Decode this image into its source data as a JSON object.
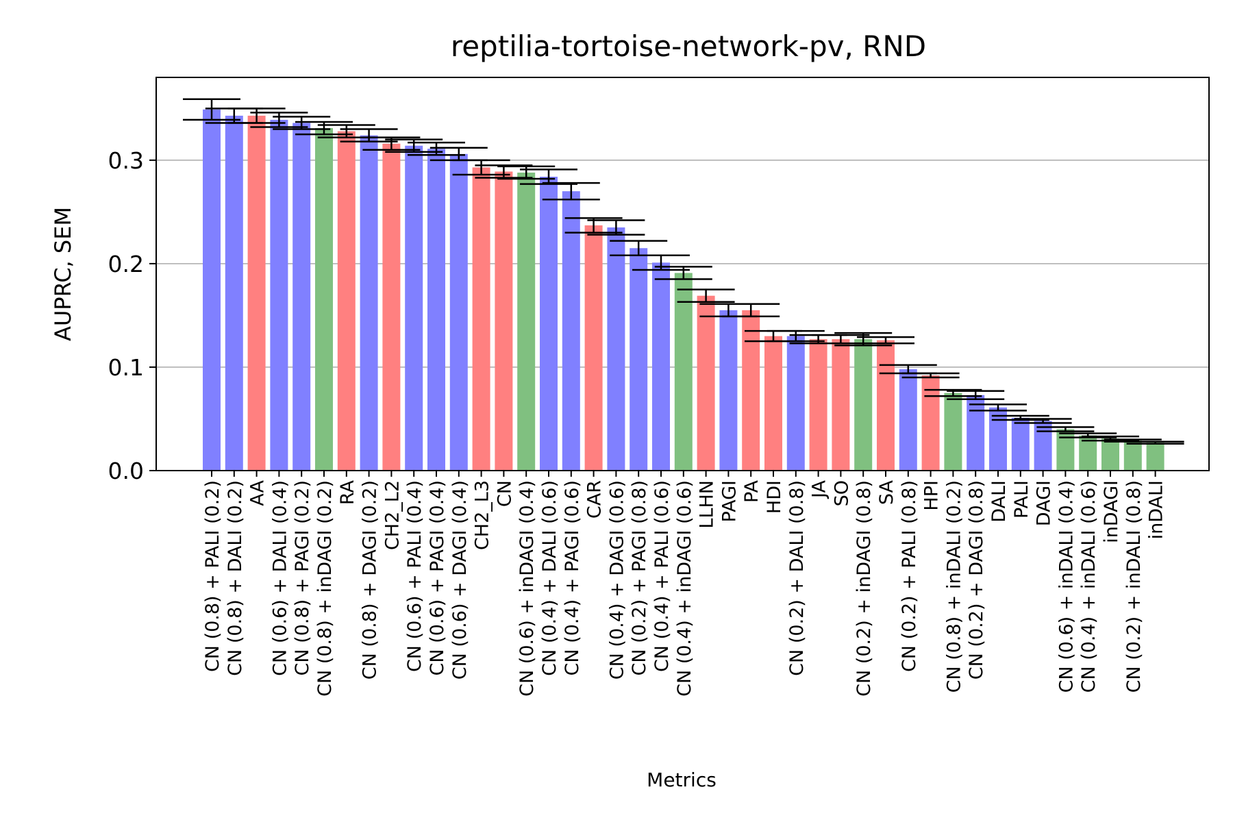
{
  "chart_data": {
    "type": "bar",
    "title": "reptilia-tortoise-network-pv, RND",
    "xlabel": "Metrics",
    "ylabel": "AUPRC, SEM",
    "ylim": [
      0,
      0.38
    ],
    "yticks": [
      0.0,
      0.1,
      0.2,
      0.3
    ],
    "ytick_labels": [
      "0.0",
      "0.1",
      "0.2",
      "0.3"
    ],
    "grid": "y",
    "legend": "none",
    "colors": {
      "blue": "#8080ff",
      "red": "#ff8080",
      "green": "#80c080",
      "grid": "#b0b0b0",
      "error": "#000000"
    },
    "categories": [
      "CN (0.8) + PALI (0.2)",
      "CN (0.8) + DALI (0.2)",
      "AA",
      "CN (0.6) + DALI (0.4)",
      "CN (0.8) + PAGI (0.2)",
      "CN (0.8) + inDAGI (0.2)",
      "RA",
      "CN (0.8) + DAGI (0.2)",
      "CH2_L2",
      "CN (0.6) + PALI (0.4)",
      "CN (0.6) + PAGI (0.4)",
      "CN (0.6) + DAGI (0.4)",
      "CH2_L3",
      "CN",
      "CN (0.6) + inDAGI (0.4)",
      "CN (0.4) + DALI (0.6)",
      "CN (0.4) + PAGI (0.6)",
      "CAR",
      "CN (0.4) + DAGI (0.6)",
      "CN (0.2) + PAGI (0.8)",
      "CN (0.4) + PALI (0.6)",
      "CN (0.4) + inDAGI (0.6)",
      "LLHN",
      "PAGI",
      "PA",
      "HDI",
      "CN (0.2) + DALI (0.8)",
      "JA",
      "SO",
      "CN (0.2) + inDAGI (0.8)",
      "SA",
      "CN (0.2) + PALI (0.8)",
      "HPI",
      "CN (0.8) + inDALI (0.2)",
      "CN (0.2) + DAGI (0.8)",
      "DALI",
      "PALI",
      "DAGI",
      "CN (0.6) + inDALI (0.4)",
      "CN (0.4) + inDALI (0.6)",
      "inDAGI",
      "CN (0.2) + inDALI (0.8)",
      "inDALI"
    ],
    "values": [
      0.349,
      0.343,
      0.343,
      0.339,
      0.336,
      0.331,
      0.328,
      0.324,
      0.316,
      0.314,
      0.311,
      0.306,
      0.293,
      0.289,
      0.288,
      0.284,
      0.27,
      0.237,
      0.235,
      0.215,
      0.201,
      0.191,
      0.169,
      0.155,
      0.155,
      0.13,
      0.13,
      0.127,
      0.127,
      0.127,
      0.126,
      0.098,
      0.092,
      0.075,
      0.073,
      0.061,
      0.051,
      0.048,
      0.04,
      0.034,
      0.031,
      0.029,
      0.027
    ],
    "errors": [
      0.01,
      0.007,
      0.007,
      0.007,
      0.006,
      0.006,
      0.006,
      0.006,
      0.006,
      0.006,
      0.006,
      0.006,
      0.007,
      0.006,
      0.006,
      0.007,
      0.008,
      0.007,
      0.007,
      0.007,
      0.007,
      0.006,
      0.006,
      0.006,
      0.006,
      0.005,
      0.005,
      0.004,
      0.004,
      0.006,
      0.003,
      0.004,
      0.002,
      0.003,
      0.004,
      0.003,
      0.002,
      0.002,
      0.002,
      0.002,
      0.002,
      0.001,
      0.001
    ],
    "bar_colors": [
      "blue",
      "blue",
      "red",
      "blue",
      "blue",
      "green",
      "red",
      "blue",
      "red",
      "blue",
      "blue",
      "blue",
      "red",
      "red",
      "green",
      "blue",
      "blue",
      "red",
      "blue",
      "blue",
      "blue",
      "green",
      "red",
      "blue",
      "red",
      "red",
      "blue",
      "red",
      "red",
      "green",
      "red",
      "blue",
      "red",
      "green",
      "blue",
      "blue",
      "blue",
      "blue",
      "green",
      "green",
      "green",
      "green",
      "green"
    ]
  }
}
